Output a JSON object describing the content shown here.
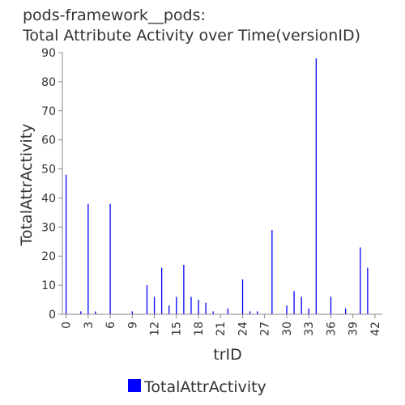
{
  "chart_data": {
    "type": "bar",
    "title_lines": [
      "pods-framework__pods:",
      "Total Attribute Activity over Time(versionID)"
    ],
    "xlabel": "trID",
    "ylabel": "TotalAttrActivity",
    "ylim": [
      0,
      90
    ],
    "yticks": [
      0,
      10,
      20,
      30,
      40,
      50,
      60,
      70,
      80,
      90
    ],
    "xlim": [
      -0.5,
      43
    ],
    "xticks": [
      0,
      3,
      6,
      9,
      12,
      15,
      18,
      21,
      24,
      27,
      30,
      33,
      36,
      39,
      42
    ],
    "grid": false,
    "legend_position": "bottom-center",
    "series": [
      {
        "name": "TotalAttrActivity",
        "color": "#0000ff",
        "x": [
          0,
          2,
          3,
          4,
          6,
          9,
          11,
          12,
          13,
          14,
          15,
          16,
          17,
          18,
          19,
          20,
          22,
          24,
          25,
          26,
          28,
          30,
          31,
          32,
          33,
          34,
          36,
          38,
          40,
          41
        ],
        "values": [
          48,
          1,
          38,
          1,
          38,
          1,
          10,
          6,
          16,
          3,
          6,
          17,
          6,
          5,
          4,
          1,
          2,
          12,
          1,
          1,
          29,
          3,
          8,
          6,
          2,
          88,
          6,
          2,
          23,
          16
        ]
      }
    ]
  }
}
